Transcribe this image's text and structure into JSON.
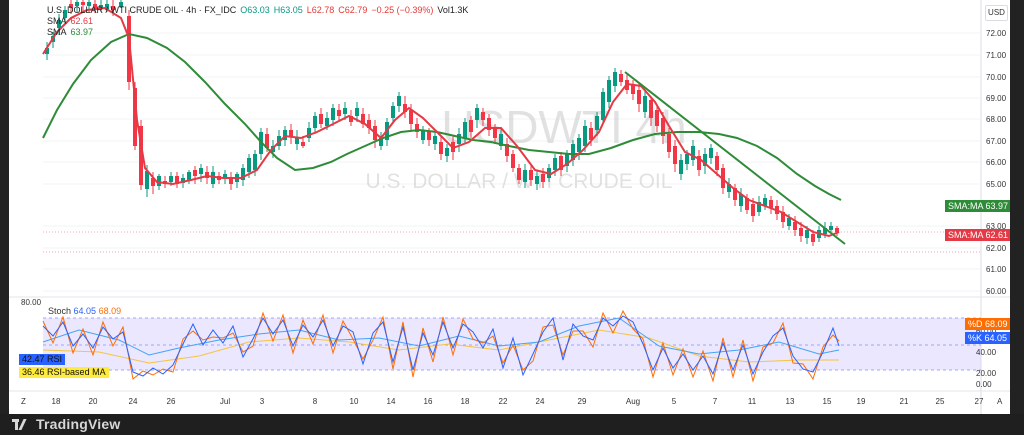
{
  "app": {
    "logo_text": "TradingView",
    "watermark_symbol": "USDWTI 4h",
    "watermark_name": "U.S. DOLLAR / WTI CRUDE OIL"
  },
  "header": {
    "symbol": "U.S. DOLLAR / WTI CRUDE OIL · 4h · FX_IDC",
    "open": "O63.03",
    "high": "H63.05",
    "low": "L62.78",
    "close": "C62.79",
    "change": "−0.25 (−0.39%)",
    "volume": "Vol1.3K",
    "sma_label": "SMA",
    "sma_value": "63.97",
    "ma_label": "SMA",
    "ma_value": "62.61",
    "currency": "USD"
  },
  "price_axis": {
    "ticks": [
      "72.00",
      "71.00",
      "70.00",
      "69.00",
      "68.00",
      "67.00",
      "66.00",
      "65.00",
      "63.00",
      "62.00",
      "61.00",
      "60.00"
    ],
    "sma_badge": "SMA:MA",
    "sma_badge_value": "63.97",
    "ma_badge": "SMA:MA",
    "ma_badge_value": "62.61"
  },
  "oscillator": {
    "legend_name": "Stoch",
    "k_value": "64.05",
    "d_value": "68.09",
    "rsi_label": "RSI",
    "rsi_value": "42.47",
    "rsi_ma_label": "RSI-based MA",
    "rsi_ma_value": "36.46",
    "top_tick": "80.00",
    "ticks": [
      "60.00",
      "40.00",
      "20.00",
      "0.00"
    ],
    "percent_d_label": "%D",
    "percent_d_value": "68.09",
    "percent_k_label": "%K",
    "percent_k_value": "64.05"
  },
  "time_axis": {
    "labels": [
      "18",
      "20",
      "24",
      "26",
      "Jul",
      "3",
      "8",
      "10",
      "14",
      "16",
      "18",
      "22",
      "24",
      "29",
      "Aug",
      "5",
      "7",
      "11",
      "13",
      "15",
      "19",
      "21",
      "25",
      "27"
    ],
    "zoom_label": "Z",
    "auto_label": "A"
  },
  "colors": {
    "green": "#2e8b38",
    "red": "#e53945",
    "blue": "#2962ff",
    "orange": "#ff6d00",
    "up": "#089981",
    "down": "#f23645",
    "rsi_band": "#d8d4ff"
  }
}
